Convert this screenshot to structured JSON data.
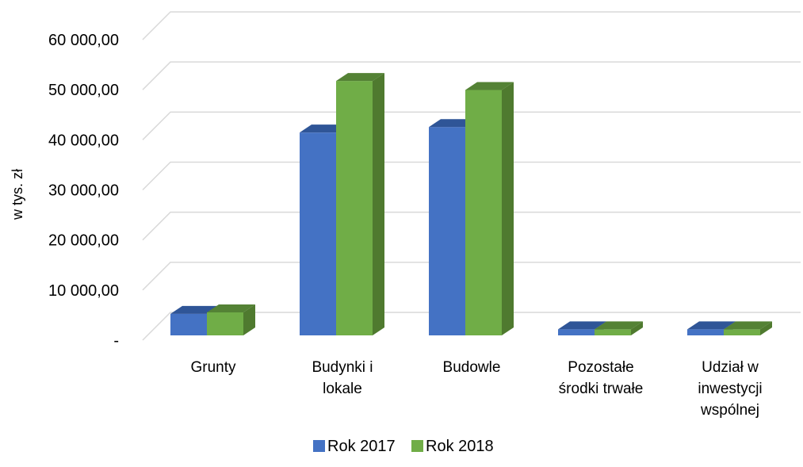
{
  "chart_data": {
    "type": "bar",
    "categories": [
      [
        "Grunty"
      ],
      [
        "Budynki i",
        "lokale"
      ],
      [
        "Budowle"
      ],
      [
        "Pozostałe",
        "środki trwałe"
      ],
      [
        "Udział w",
        "inwestycji",
        "wspólnej"
      ]
    ],
    "series": [
      {
        "name": "Rok 2017",
        "values": [
          4300,
          40500,
          41600,
          1200,
          1200
        ],
        "color": "#4472C4",
        "top_color": "#2F5597",
        "side_color": "#2F5597"
      },
      {
        "name": "Rok 2018",
        "values": [
          4600,
          50800,
          49000,
          1200,
          1200
        ],
        "color": "#70AD47",
        "top_color": "#548235",
        "side_color": "#4F7A2F"
      }
    ],
    "title": "",
    "xlabel": "",
    "ylabel": "w tys. zł",
    "ylim": [
      0,
      60000
    ],
    "yticks": [
      0,
      10000,
      20000,
      30000,
      40000,
      50000,
      60000
    ],
    "ytick_labels": [
      "-",
      "10 000,00",
      "20 000,00",
      "30 000,00",
      "40 000,00",
      "50 000,00",
      "60 000,00"
    ],
    "grid": true,
    "three_d": true,
    "legend_position": "bottom"
  }
}
